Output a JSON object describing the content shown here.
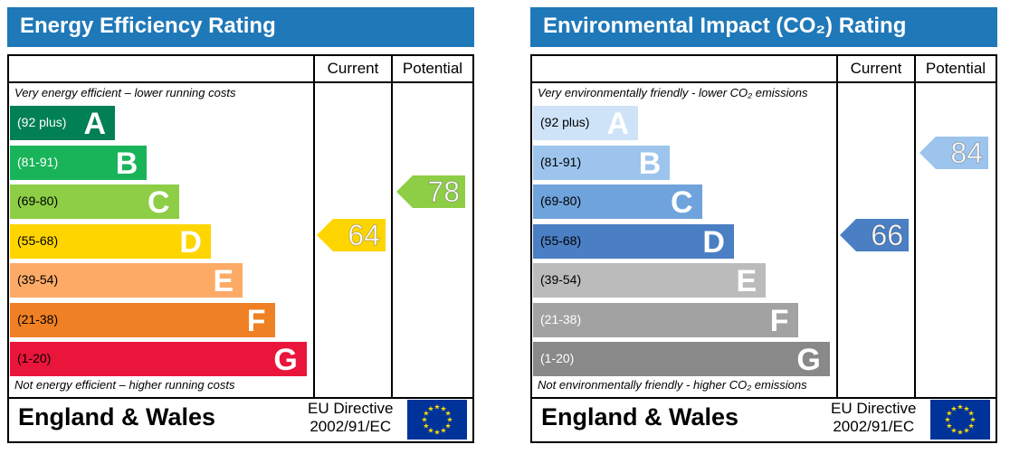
{
  "chart_data": [
    {
      "type": "bar",
      "title": "Energy Efficiency Rating",
      "columns": [
        "Current",
        "Potential"
      ],
      "top_note": "Very energy efficient – lower running costs",
      "bottom_note": "Not energy efficient – higher running costs",
      "categories": [
        "A",
        "B",
        "C",
        "D",
        "E",
        "F",
        "G"
      ],
      "ranges": [
        "(92 plus)",
        "(81-91)",
        "(69-80)",
        "(55-68)",
        "(39-54)",
        "(21-38)",
        "(1-20)"
      ],
      "band_colors": [
        "#008054",
        "#19b459",
        "#8dce46",
        "#ffd500",
        "#fcaa65",
        "#ef8023",
        "#e9153b"
      ],
      "range_text_colors": [
        "#ffffff",
        "#ffffff",
        "#000000",
        "#000000",
        "#000000",
        "#000000",
        "#000000"
      ],
      "current": {
        "value": 64,
        "band": "D",
        "color": "#ffd500"
      },
      "potential": {
        "value": 78,
        "band": "C",
        "color": "#8dce46"
      },
      "footer": {
        "country": "England & Wales",
        "directive_line1": "EU Directive",
        "directive_line2": "2002/91/EC"
      }
    },
    {
      "type": "bar",
      "title": "Environmental Impact (CO₂) Rating",
      "columns": [
        "Current",
        "Potential"
      ],
      "top_note": "Very environmentally friendly - lower CO₂ emissions",
      "bottom_note": "Not environmentally friendly - higher CO₂ emissions",
      "categories": [
        "A",
        "B",
        "C",
        "D",
        "E",
        "F",
        "G"
      ],
      "ranges": [
        "(92 plus)",
        "(81-91)",
        "(69-80)",
        "(55-68)",
        "(39-54)",
        "(21-38)",
        "(1-20)"
      ],
      "band_colors": [
        "#cfe3f8",
        "#9cc4ec",
        "#6fa3dc",
        "#4a7fc4",
        "#bbbbbb",
        "#a2a2a2",
        "#898989"
      ],
      "range_text_colors": [
        "#000000",
        "#000000",
        "#000000",
        "#000000",
        "#000000",
        "#ffffff",
        "#ffffff"
      ],
      "current": {
        "value": 66,
        "band": "D",
        "color": "#4a7fc4"
      },
      "potential": {
        "value": 84,
        "band": "B",
        "color": "#9cc4ec"
      },
      "footer": {
        "country": "England & Wales",
        "directive_line1": "EU Directive",
        "directive_line2": "2002/91/EC"
      }
    }
  ]
}
